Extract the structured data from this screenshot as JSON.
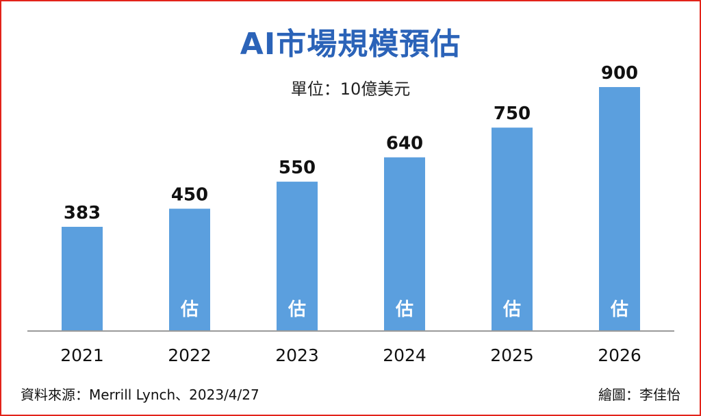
{
  "title": "AI市場規模預估",
  "unit_label": "單位：10億美元",
  "source": "資料來源：Merrill Lynch、2023/4/27",
  "credit": "繪圖：李佳怡",
  "colors": {
    "bar": "#5b9fde",
    "title": "#2b63b8",
    "border": "#e2231a"
  },
  "chart_data": {
    "type": "bar",
    "categories": [
      "2021",
      "2022",
      "2023",
      "2024",
      "2025",
      "2026"
    ],
    "values": [
      383,
      450,
      550,
      640,
      750,
      900
    ],
    "data_labels": [
      "383",
      "450",
      "550",
      "640",
      "750",
      "900"
    ],
    "estimate_flags": [
      false,
      true,
      true,
      true,
      true,
      true
    ],
    "estimate_mark": "估",
    "title": "AI市場規模預估",
    "xlabel": "",
    "ylabel": "",
    "ylim": [
      0,
      1000
    ],
    "grid": false,
    "legend": "none"
  }
}
